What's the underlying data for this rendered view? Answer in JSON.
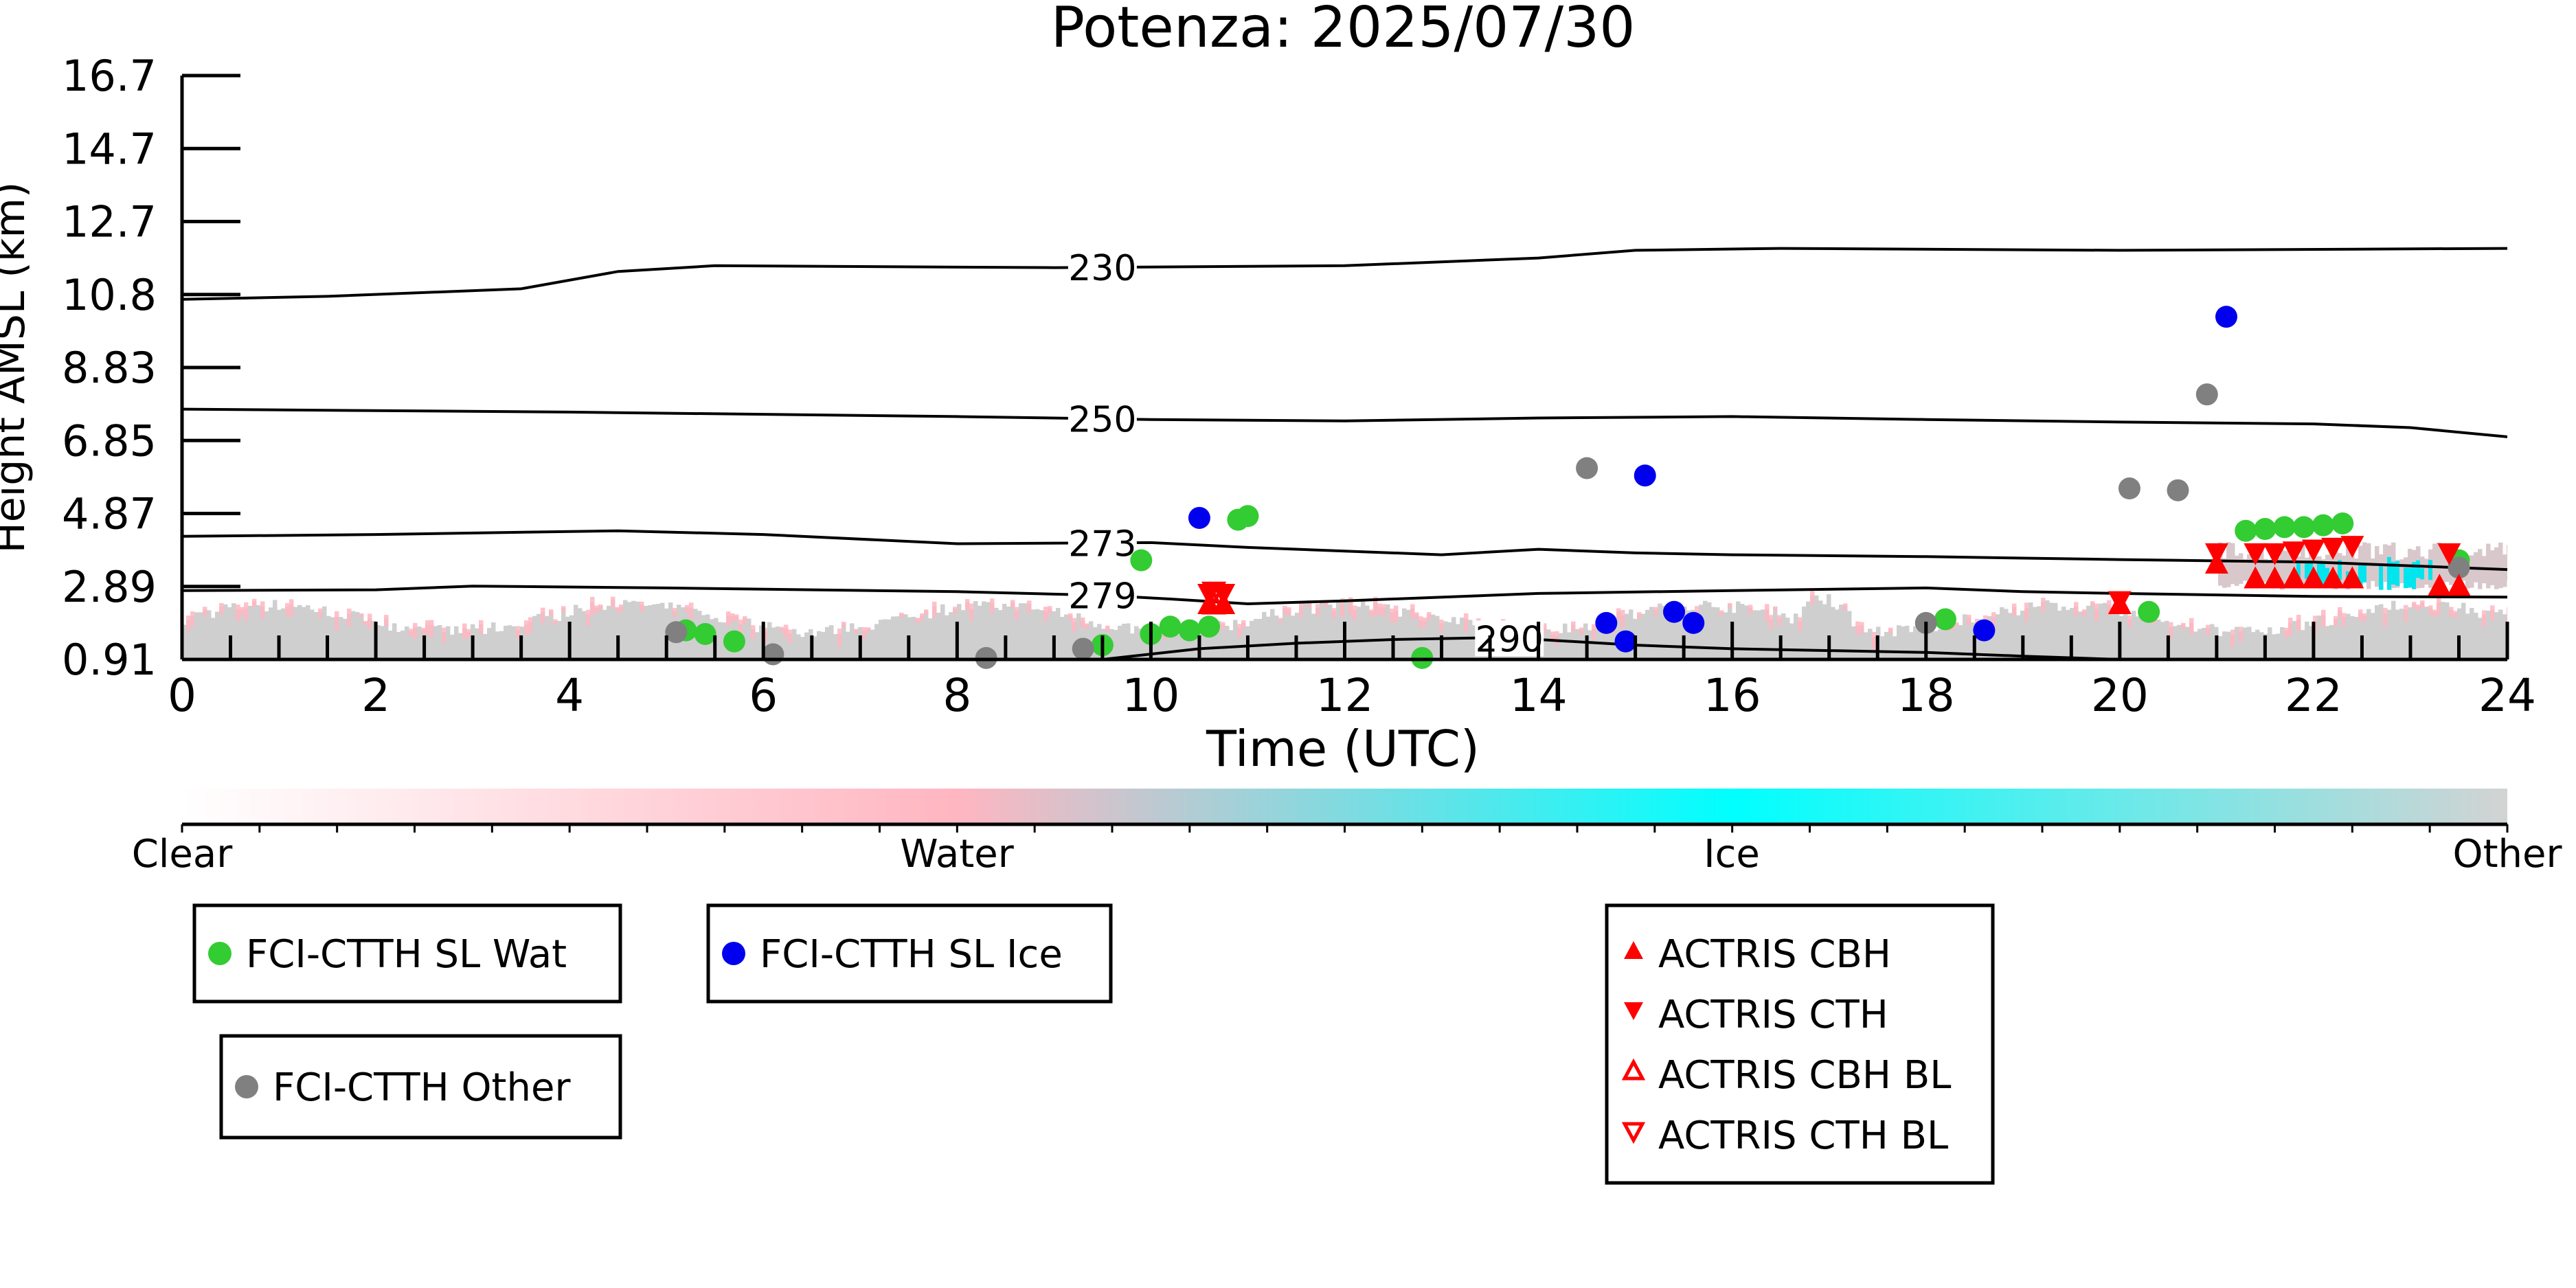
{
  "chart_data": {
    "type": "scatter",
    "title": "Potenza: 2025/07/30",
    "xlabel": "Time (UTC)",
    "ylabel": "Height AMSL (km)",
    "xlim": [
      0,
      24
    ],
    "ylim": [
      0.91,
      16.7
    ],
    "x_ticks": [
      "0",
      "2",
      "4",
      "6",
      "8",
      "10",
      "12",
      "14",
      "16",
      "18",
      "20",
      "22",
      "24"
    ],
    "y_ticks": [
      "0.91",
      "2.89",
      "4.87",
      "6.85",
      "8.83",
      "10.8",
      "12.7",
      "14.7",
      "16.7"
    ],
    "y_tick_values": [
      0.91,
      2.89,
      4.87,
      6.85,
      8.83,
      10.8,
      12.7,
      14.7,
      16.7
    ],
    "grid": false,
    "colorbar": {
      "labels": [
        "Clear",
        "Water",
        "Ice",
        "Other"
      ],
      "colors": [
        "#ffffff",
        "#ffb6c1",
        "#00ffff",
        "#d3d3d3"
      ]
    },
    "isotherms": [
      {
        "label": "230",
        "points": [
          [
            0,
            10.67
          ],
          [
            1.5,
            10.75
          ],
          [
            3.5,
            10.95
          ],
          [
            4.5,
            11.4
          ],
          [
            5.5,
            11.55
          ],
          [
            9,
            11.5
          ],
          [
            12,
            11.55
          ],
          [
            14,
            11.75
          ],
          [
            15,
            11.95
          ],
          [
            16.5,
            12.0
          ],
          [
            20,
            11.95
          ],
          [
            24,
            12.0
          ]
        ]
      },
      {
        "label": "250",
        "points": [
          [
            0,
            7.7
          ],
          [
            4,
            7.62
          ],
          [
            8,
            7.5
          ],
          [
            10,
            7.42
          ],
          [
            12,
            7.38
          ],
          [
            14,
            7.46
          ],
          [
            16,
            7.5
          ],
          [
            18,
            7.42
          ],
          [
            20,
            7.35
          ],
          [
            22,
            7.3
          ],
          [
            23,
            7.2
          ],
          [
            24,
            6.95
          ]
        ]
      },
      {
        "label": "273",
        "points": [
          [
            0,
            4.25
          ],
          [
            2,
            4.3
          ],
          [
            4.5,
            4.4
          ],
          [
            6,
            4.3
          ],
          [
            8,
            4.05
          ],
          [
            10,
            4.08
          ],
          [
            11,
            3.95
          ],
          [
            12,
            3.85
          ],
          [
            13,
            3.75
          ],
          [
            14,
            3.9
          ],
          [
            15,
            3.8
          ],
          [
            16,
            3.75
          ],
          [
            18,
            3.7
          ],
          [
            20,
            3.62
          ],
          [
            22,
            3.55
          ],
          [
            24,
            3.35
          ]
        ]
      },
      {
        "label": "279",
        "points": [
          [
            0,
            2.78
          ],
          [
            2,
            2.8
          ],
          [
            3,
            2.9
          ],
          [
            5,
            2.85
          ],
          [
            8,
            2.75
          ],
          [
            9.5,
            2.65
          ],
          [
            10.2,
            2.55
          ],
          [
            11,
            2.42
          ],
          [
            12,
            2.5
          ],
          [
            14,
            2.7
          ],
          [
            16,
            2.78
          ],
          [
            18,
            2.85
          ],
          [
            19,
            2.75
          ],
          [
            20,
            2.7
          ],
          [
            22,
            2.62
          ],
          [
            24,
            2.6
          ]
        ]
      },
      {
        "label": "290",
        "points": [
          [
            9.5,
            0.91
          ],
          [
            10.5,
            1.2
          ],
          [
            11.5,
            1.35
          ],
          [
            12.5,
            1.45
          ],
          [
            13.5,
            1.5
          ],
          [
            14,
            1.45
          ],
          [
            15,
            1.3
          ],
          [
            16,
            1.2
          ],
          [
            17,
            1.15
          ],
          [
            18,
            1.1
          ],
          [
            19,
            1.0
          ],
          [
            20,
            0.91
          ]
        ]
      }
    ],
    "series": [
      {
        "name": "FCI-CTTH SL Wat",
        "marker": "circle",
        "color": "#33cc33",
        "points": [
          [
            5.2,
            1.7
          ],
          [
            5.4,
            1.6
          ],
          [
            5.7,
            1.4
          ],
          [
            9.5,
            1.3
          ],
          [
            9.9,
            3.6
          ],
          [
            10.0,
            1.6
          ],
          [
            10.2,
            1.8
          ],
          [
            10.4,
            1.7
          ],
          [
            10.6,
            1.8
          ],
          [
            10.9,
            4.7
          ],
          [
            11.0,
            4.8
          ],
          [
            12.8,
            0.95
          ],
          [
            18.2,
            2.0
          ],
          [
            20.3,
            2.2
          ],
          [
            21.3,
            4.4
          ],
          [
            21.5,
            4.45
          ],
          [
            21.7,
            4.5
          ],
          [
            21.9,
            4.5
          ],
          [
            22.1,
            4.55
          ],
          [
            22.3,
            4.6
          ],
          [
            23.5,
            3.6
          ]
        ]
      },
      {
        "name": "FCI-CTTH SL Ice",
        "marker": "circle",
        "color": "#0000ee",
        "points": [
          [
            10.5,
            4.75
          ],
          [
            14.7,
            1.9
          ],
          [
            14.9,
            1.4
          ],
          [
            15.1,
            5.9
          ],
          [
            15.4,
            2.2
          ],
          [
            15.6,
            1.9
          ],
          [
            18.6,
            1.7
          ],
          [
            21.1,
            10.2
          ]
        ]
      },
      {
        "name": "FCI-CTTH Other",
        "marker": "circle",
        "color": "#808080",
        "points": [
          [
            5.1,
            1.65
          ],
          [
            6.1,
            1.05
          ],
          [
            8.3,
            0.95
          ],
          [
            9.3,
            1.2
          ],
          [
            14.5,
            6.1
          ],
          [
            18.0,
            1.9
          ],
          [
            20.1,
            5.55
          ],
          [
            20.6,
            5.5
          ],
          [
            20.9,
            8.1
          ],
          [
            23.5,
            3.4
          ]
        ]
      },
      {
        "name": "ACTRIS CBH",
        "marker": "triangle-up",
        "color": "#ff0000",
        "points": [
          [
            10.6,
            2.4
          ],
          [
            10.75,
            2.4
          ],
          [
            20.0,
            2.4
          ],
          [
            21.0,
            3.5
          ],
          [
            21.4,
            3.1
          ],
          [
            21.6,
            3.1
          ],
          [
            21.8,
            3.1
          ],
          [
            22.0,
            3.1
          ],
          [
            22.2,
            3.1
          ],
          [
            22.4,
            3.1
          ],
          [
            23.3,
            2.9
          ],
          [
            23.5,
            2.9
          ]
        ]
      },
      {
        "name": "ACTRIS CTH",
        "marker": "triangle-down",
        "color": "#ff0000",
        "points": [
          [
            10.6,
            2.7
          ],
          [
            10.75,
            2.7
          ],
          [
            20.0,
            2.5
          ],
          [
            21.0,
            3.8
          ],
          [
            21.4,
            3.8
          ],
          [
            21.6,
            3.8
          ],
          [
            21.8,
            3.85
          ],
          [
            22.0,
            3.9
          ],
          [
            22.2,
            3.95
          ],
          [
            22.4,
            4.0
          ],
          [
            23.4,
            3.8
          ]
        ]
      },
      {
        "name": "ACTRIS CBH BL",
        "marker": "triangle-up-open",
        "color": "#ff0000",
        "points": [
          [
            10.65,
            2.4
          ]
        ]
      },
      {
        "name": "ACTRIS CTH BL",
        "marker": "triangle-down-open",
        "color": "#ff0000",
        "points": [
          [
            10.65,
            2.75
          ]
        ]
      }
    ]
  },
  "legend": {
    "sl_wat": "FCI-CTTH SL Wat",
    "sl_ice": "FCI-CTTH SL Ice",
    "other": "FCI-CTTH Other",
    "cbh": "ACTRIS CBH",
    "cth": "ACTRIS CTH",
    "cbh_bl": "ACTRIS CBH BL",
    "cth_bl": "ACTRIS CTH BL"
  }
}
